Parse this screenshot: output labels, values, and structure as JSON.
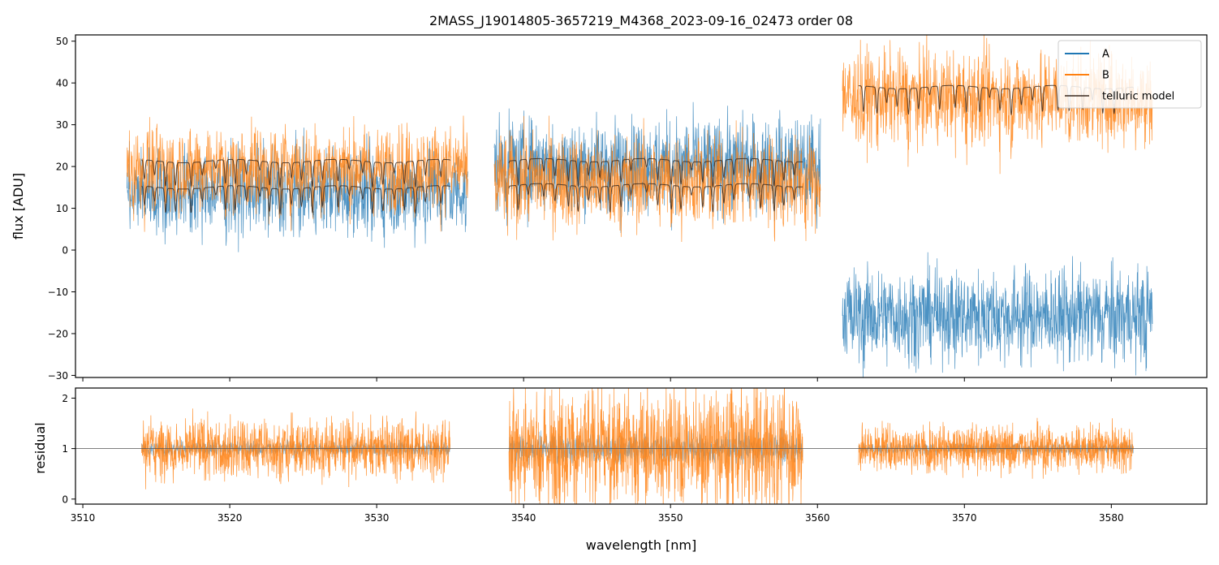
{
  "chart_data": [
    {
      "type": "line",
      "title": "2MASS_J19014805-3657219_M4368_2023-09-16_02473  order 08",
      "xlabel": "",
      "ylabel": "flux [ADU]",
      "xlim": [
        3509.5,
        3586.5
      ],
      "ylim": [
        -30.5,
        51.5
      ],
      "xticks": [
        3510,
        3520,
        3530,
        3540,
        3550,
        3560,
        3570,
        3580
      ],
      "yticks": [
        -30,
        -20,
        -10,
        0,
        10,
        20,
        30,
        40,
        50
      ],
      "ytick_labels": [
        "−30",
        "−20",
        "−10",
        "0",
        "10",
        "20",
        "30",
        "40",
        "50"
      ],
      "legend": {
        "position": "top-right",
        "entries": [
          "A",
          "B",
          "telluric model"
        ]
      },
      "segments": [
        {
          "x": [
            3513.0,
            3536.2
          ],
          "A_level": 14.5,
          "B_level": 20.0,
          "noise": 13,
          "telluric": [
            {
              "x": [
                3514.0,
                3535.0
              ],
              "level": 21.3
            },
            {
              "x": [
                3514.0,
                3535.0
              ],
              "level": 15.0
            }
          ]
        },
        {
          "x": [
            3538.0,
            3560.2
          ],
          "A_level": 21.0,
          "B_level": 17.0,
          "noise": 14,
          "telluric": [
            {
              "x": [
                3539.0,
                3559.0
              ],
              "level": 21.5
            },
            {
              "x": [
                3539.0,
                3559.0
              ],
              "level": 15.5
            }
          ]
        },
        {
          "x": [
            3561.7,
            3582.8
          ],
          "A_level": -15.0,
          "B_level": 37.0,
          "noise": 14,
          "telluric": [
            {
              "x": [
                3562.8,
                3581.5
              ],
              "level": 39.0
            }
          ]
        }
      ],
      "series": [
        {
          "name": "A",
          "color": "#1f77b4"
        },
        {
          "name": "B",
          "color": "#ff7f0e"
        },
        {
          "name": "telluric model",
          "color": "#3a2a20"
        }
      ]
    },
    {
      "type": "line",
      "xlabel": "wavelength [nm]",
      "ylabel": "residual",
      "xlim": [
        3509.5,
        3586.5
      ],
      "ylim": [
        -0.1,
        2.2
      ],
      "xticks": [
        3510,
        3520,
        3530,
        3540,
        3550,
        3560,
        3570,
        3580
      ],
      "yticks": [
        0,
        1,
        2
      ],
      "reference_line": 1,
      "segments": [
        {
          "x": [
            3514.0,
            3535.0
          ],
          "amplitude": 0.42
        },
        {
          "x": [
            3539.0,
            3559.0
          ],
          "amplitude": 0.85
        },
        {
          "x": [
            3562.8,
            3581.5
          ],
          "amplitude": 0.32
        }
      ]
    }
  ]
}
